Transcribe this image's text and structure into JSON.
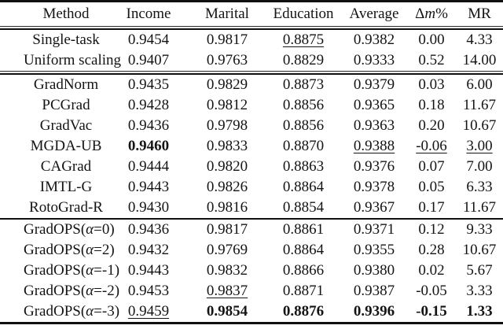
{
  "table": {
    "columns": [
      {
        "label": "Method"
      },
      {
        "label": "Income"
      },
      {
        "label": "Marital"
      },
      {
        "label": "Education"
      },
      {
        "label": "Average"
      },
      {
        "label": "Δm%",
        "italic_char": "m"
      },
      {
        "label": "MR"
      }
    ],
    "sections": [
      {
        "rows": [
          {
            "method": "Single-task",
            "values": [
              {
                "v": "0.9454"
              },
              {
                "v": "0.9817"
              },
              {
                "v": "0.8875",
                "u": true
              },
              {
                "v": "0.9382"
              },
              {
                "v": "0.00"
              },
              {
                "v": "4.33"
              }
            ]
          },
          {
            "method": "Uniform scaling",
            "values": [
              {
                "v": "0.9407"
              },
              {
                "v": "0.9763"
              },
              {
                "v": "0.8829"
              },
              {
                "v": "0.9333"
              },
              {
                "v": "0.52"
              },
              {
                "v": "14.00"
              }
            ]
          }
        ]
      },
      {
        "rows": [
          {
            "method": "GradNorm",
            "values": [
              {
                "v": "0.9435"
              },
              {
                "v": "0.9829"
              },
              {
                "v": "0.8873"
              },
              {
                "v": "0.9379"
              },
              {
                "v": "0.03"
              },
              {
                "v": "6.00"
              }
            ]
          },
          {
            "method": "PCGrad",
            "values": [
              {
                "v": "0.9428"
              },
              {
                "v": "0.9812"
              },
              {
                "v": "0.8856"
              },
              {
                "v": "0.9365"
              },
              {
                "v": "0.18"
              },
              {
                "v": "11.67"
              }
            ]
          },
          {
            "method": "GradVac",
            "values": [
              {
                "v": "0.9436"
              },
              {
                "v": "0.9798"
              },
              {
                "v": "0.8856"
              },
              {
                "v": "0.9363"
              },
              {
                "v": "0.20"
              },
              {
                "v": "10.67"
              }
            ]
          },
          {
            "method": "MGDA-UB",
            "values": [
              {
                "v": "0.9460",
                "b": true
              },
              {
                "v": "0.9833"
              },
              {
                "v": "0.8870"
              },
              {
                "v": "0.9388",
                "u": true
              },
              {
                "v": "-0.06",
                "u": true
              },
              {
                "v": "3.00",
                "u": true
              }
            ]
          },
          {
            "method": "CAGrad",
            "values": [
              {
                "v": "0.9444"
              },
              {
                "v": "0.9820"
              },
              {
                "v": "0.8863"
              },
              {
                "v": "0.9376"
              },
              {
                "v": "0.07"
              },
              {
                "v": "7.00"
              }
            ]
          },
          {
            "method": "IMTL-G",
            "values": [
              {
                "v": "0.9443"
              },
              {
                "v": "0.9826"
              },
              {
                "v": "0.8864"
              },
              {
                "v": "0.9378"
              },
              {
                "v": "0.05"
              },
              {
                "v": "6.33"
              }
            ]
          },
          {
            "method": "RotoGrad-R",
            "values": [
              {
                "v": "0.9430"
              },
              {
                "v": "0.9816"
              },
              {
                "v": "0.8854"
              },
              {
                "v": "0.9367"
              },
              {
                "v": "0.17"
              },
              {
                "v": "11.67"
              }
            ]
          }
        ]
      },
      {
        "rows": [
          {
            "method": "GradOPS(α=0)",
            "values": [
              {
                "v": "0.9436"
              },
              {
                "v": "0.9817"
              },
              {
                "v": "0.8861"
              },
              {
                "v": "0.9371"
              },
              {
                "v": "0.12"
              },
              {
                "v": "9.33"
              }
            ]
          },
          {
            "method": "GradOPS(α=2)",
            "values": [
              {
                "v": "0.9432"
              },
              {
                "v": "0.9769"
              },
              {
                "v": "0.8864"
              },
              {
                "v": "0.9355"
              },
              {
                "v": "0.28"
              },
              {
                "v": "10.67"
              }
            ]
          },
          {
            "method": "GradOPS(α=-1)",
            "values": [
              {
                "v": "0.9443"
              },
              {
                "v": "0.9832"
              },
              {
                "v": "0.8866"
              },
              {
                "v": "0.9380"
              },
              {
                "v": "0.02"
              },
              {
                "v": "5.67"
              }
            ]
          },
          {
            "method": "GradOPS(α=-2)",
            "values": [
              {
                "v": "0.9453"
              },
              {
                "v": "0.9837",
                "u": true
              },
              {
                "v": "0.8871"
              },
              {
                "v": "0.9387"
              },
              {
                "v": "-0.05"
              },
              {
                "v": "3.33"
              }
            ]
          },
          {
            "method": "GradOPS(α=-3)",
            "values": [
              {
                "v": "0.9459",
                "u": true
              },
              {
                "v": "0.9854",
                "b": true
              },
              {
                "v": "0.8876",
                "b": true
              },
              {
                "v": "0.9396",
                "b": true
              },
              {
                "v": "-0.15",
                "b": true
              },
              {
                "v": "1.33",
                "b": true
              }
            ]
          }
        ]
      }
    ]
  }
}
